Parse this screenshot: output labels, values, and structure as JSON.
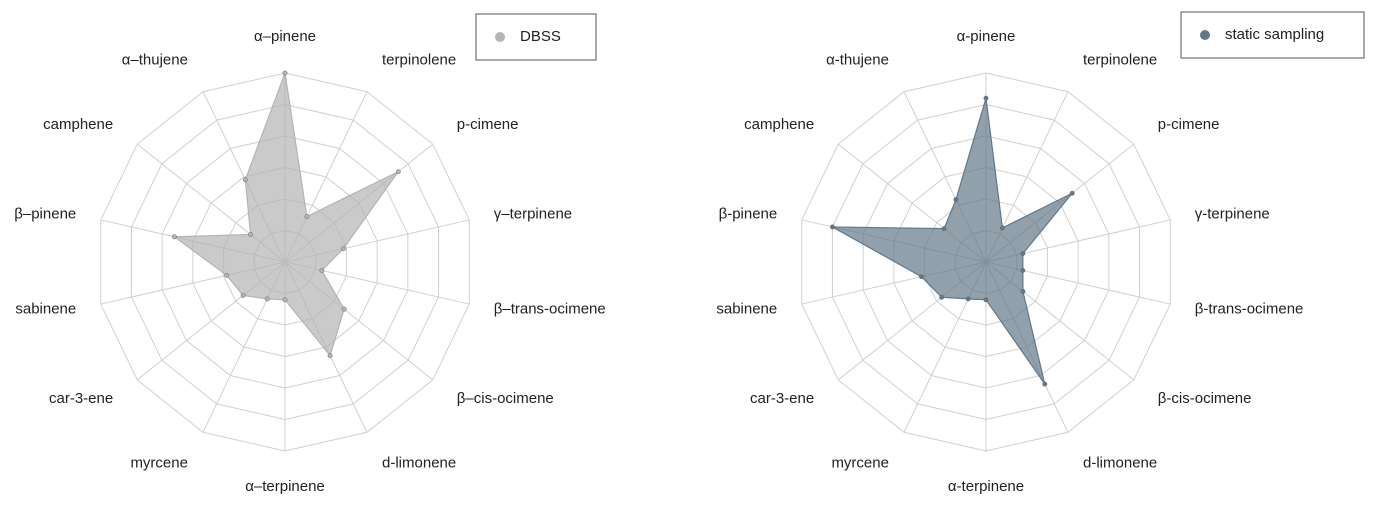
{
  "chart_data": [
    {
      "type": "radar",
      "categories": [
        "α–pinene",
        "terpinolene",
        "p-cimene",
        "γ–terpinene",
        "β–trans-ocimene",
        "β–cis-ocimene",
        "d-limonene",
        "α–terpinene",
        "myrcene",
        "car-3-ene",
        "sabinene",
        "β–pinene",
        "camphene",
        "α–thujene"
      ],
      "series": [
        {
          "name": "DBSS",
          "color": "#b4b4b4",
          "values": [
            6.0,
            1.6,
            4.6,
            1.9,
            1.2,
            2.4,
            3.3,
            1.2,
            1.3,
            1.7,
            1.9,
            3.6,
            1.4,
            2.9
          ]
        }
      ],
      "ylim": [
        0,
        6
      ],
      "yticks": [
        1,
        2,
        3,
        4,
        5,
        6
      ],
      "grid": true,
      "legend": "upper right"
    },
    {
      "type": "radar",
      "categories": [
        "α-pinene",
        "terpinolene",
        "p-cimene",
        "γ-terpinene",
        "β-trans-ocimene",
        "β-cis-ocimene",
        "d-limonene",
        "α-terpinene",
        "myrcene",
        "car-3-ene",
        "sabinene",
        "β-pinene",
        "camphene",
        "α-thujene"
      ],
      "series": [
        {
          "name": "static sampling",
          "color": "#627888",
          "values": [
            5.2,
            1.2,
            3.5,
            1.2,
            1.2,
            1.5,
            4.3,
            1.2,
            1.3,
            1.8,
            2.1,
            5.0,
            1.7,
            2.2
          ]
        }
      ],
      "ylim": [
        0,
        6
      ],
      "yticks": [
        1,
        2,
        3,
        4,
        5,
        6
      ],
      "grid": true,
      "legend": "upper right"
    }
  ]
}
